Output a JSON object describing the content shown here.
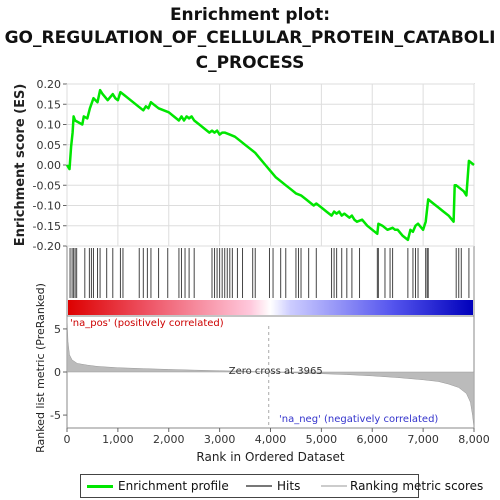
{
  "title_lines": [
    "Enrichment plot:",
    "GO_REGULATION_OF_CELLULAR_PROTEIN_CATABOLI",
    "C_PROCESS"
  ],
  "colors": {
    "enrichment": "#00e600",
    "hits": "#444444",
    "ranking": "#bbbbbb",
    "pos_text": "#cc0000",
    "neg_text": "#3333cc",
    "zero_line": "#aaaaaa"
  },
  "legend": {
    "enrichment_profile": "Enrichment profile",
    "hits": "Hits",
    "ranking_scores": "Ranking metric scores"
  },
  "annotations": {
    "na_pos": "'na_pos' (positively correlated)",
    "na_neg": "'na_neg' (negatively correlated)",
    "zero_cross": "Zero cross at 3965"
  },
  "chart_data": [
    {
      "type": "line",
      "name": "Enrichment profile",
      "ylabel": "Enrichment score (ES)",
      "xlim": [
        0,
        8000
      ],
      "ylim": [
        -0.2,
        0.2
      ],
      "yticks": [
        "0.20",
        "0.15",
        "0.10",
        "0.05",
        "0.00",
        "-0.05",
        "-0.10",
        "-0.15",
        "-0.20"
      ],
      "ytick_values": [
        0.2,
        0.15,
        0.1,
        0.05,
        0,
        -0.05,
        -0.1,
        -0.15,
        -0.2
      ],
      "x": [
        0,
        50,
        80,
        110,
        130,
        160,
        300,
        330,
        400,
        450,
        520,
        560,
        600,
        650,
        700,
        800,
        900,
        950,
        1000,
        1050,
        1100,
        1200,
        1300,
        1400,
        1500,
        1550,
        1600,
        1650,
        1700,
        1800,
        1900,
        2000,
        2100,
        2200,
        2250,
        2300,
        2350,
        2400,
        2450,
        2500,
        2600,
        2700,
        2800,
        2850,
        2900,
        2950,
        3000,
        3050,
        3100,
        3200,
        3300,
        3400,
        3500,
        3600,
        3700,
        3800,
        3900,
        4000,
        4100,
        4200,
        4300,
        4400,
        4500,
        4600,
        4700,
        4800,
        4850,
        4900,
        5000,
        5100,
        5200,
        5250,
        5300,
        5350,
        5400,
        5450,
        5500,
        5550,
        5600,
        5650,
        5700,
        5800,
        5900,
        6000,
        6100,
        6120,
        6200,
        6300,
        6400,
        6450,
        6500,
        6600,
        6700,
        6750,
        6800,
        6850,
        6900,
        7000,
        7050,
        7100,
        7200,
        7300,
        7400,
        7500,
        7600,
        7620,
        7650,
        7700,
        7800,
        7850,
        7900,
        8000
      ],
      "values": [
        0.0,
        -0.01,
        0.045,
        0.08,
        0.12,
        0.11,
        0.1,
        0.12,
        0.115,
        0.14,
        0.165,
        0.16,
        0.155,
        0.185,
        0.175,
        0.16,
        0.175,
        0.165,
        0.16,
        0.18,
        0.175,
        0.165,
        0.155,
        0.145,
        0.135,
        0.145,
        0.14,
        0.155,
        0.15,
        0.14,
        0.135,
        0.13,
        0.12,
        0.11,
        0.12,
        0.11,
        0.12,
        0.115,
        0.12,
        0.11,
        0.1,
        0.09,
        0.08,
        0.085,
        0.08,
        0.085,
        0.075,
        0.08,
        0.08,
        0.075,
        0.07,
        0.06,
        0.05,
        0.04,
        0.03,
        0.015,
        0.0,
        -0.015,
        -0.03,
        -0.04,
        -0.05,
        -0.06,
        -0.07,
        -0.075,
        -0.085,
        -0.095,
        -0.1,
        -0.095,
        -0.105,
        -0.115,
        -0.125,
        -0.115,
        -0.12,
        -0.115,
        -0.125,
        -0.12,
        -0.125,
        -0.13,
        -0.125,
        -0.135,
        -0.14,
        -0.135,
        -0.15,
        -0.16,
        -0.17,
        -0.145,
        -0.15,
        -0.16,
        -0.155,
        -0.16,
        -0.16,
        -0.175,
        -0.185,
        -0.16,
        -0.165,
        -0.15,
        -0.145,
        -0.16,
        -0.14,
        -0.085,
        -0.095,
        -0.105,
        -0.115,
        -0.125,
        -0.14,
        -0.05,
        -0.05,
        -0.055,
        -0.065,
        -0.075,
        0.01,
        0.0
      ]
    },
    {
      "type": "scatter",
      "name": "Hits",
      "x": [
        60,
        100,
        130,
        160,
        190,
        350,
        440,
        480,
        520,
        600,
        650,
        780,
        900,
        1050,
        1100,
        1420,
        1500,
        1580,
        1650,
        1800,
        1980,
        2200,
        2250,
        2320,
        2400,
        2500,
        2850,
        2900,
        2950,
        3000,
        3050,
        3100,
        3150,
        3200,
        3250,
        3350,
        3450,
        3650,
        3700,
        3980,
        4050,
        4200,
        4300,
        4500,
        4550,
        4600,
        4750,
        4900,
        5200,
        5250,
        5300,
        5400,
        5500,
        5600,
        5750,
        6100,
        6120,
        6250,
        6350,
        6400,
        6700,
        6800,
        6850,
        6900,
        7050,
        7080,
        7100,
        7650,
        7700,
        7750,
        7900
      ]
    },
    {
      "type": "area",
      "name": "Ranked list metric",
      "ylabel": "Ranked list metric (PreRanked)",
      "xlabel": "Rank in Ordered Dataset",
      "xlim": [
        0,
        8000
      ],
      "ylim": [
        -6.5,
        6.5
      ],
      "yticks": [
        "5",
        "0",
        "-5"
      ],
      "ytick_values": [
        5,
        0,
        -5
      ],
      "xticks": [
        "0",
        "1,000",
        "2,000",
        "3,000",
        "4,000",
        "5,000",
        "6,000",
        "7,000",
        "8,000"
      ],
      "xtick_values": [
        0,
        1000,
        2000,
        3000,
        4000,
        5000,
        6000,
        7000,
        8000
      ],
      "x": [
        0,
        20,
        50,
        100,
        200,
        400,
        600,
        1000,
        1500,
        2000,
        2500,
        3000,
        3500,
        3965,
        4500,
        5000,
        5500,
        6000,
        6500,
        7000,
        7300,
        7500,
        7700,
        7850,
        7930,
        7970,
        8000
      ],
      "values": [
        6.5,
        3.5,
        2.0,
        1.4,
        1.0,
        0.8,
        0.65,
        0.5,
        0.4,
        0.3,
        0.22,
        0.15,
        0.08,
        0.0,
        -0.1,
        -0.2,
        -0.3,
        -0.45,
        -0.65,
        -0.9,
        -1.1,
        -1.4,
        -1.8,
        -2.5,
        -3.5,
        -5.0,
        -6.5
      ]
    }
  ]
}
